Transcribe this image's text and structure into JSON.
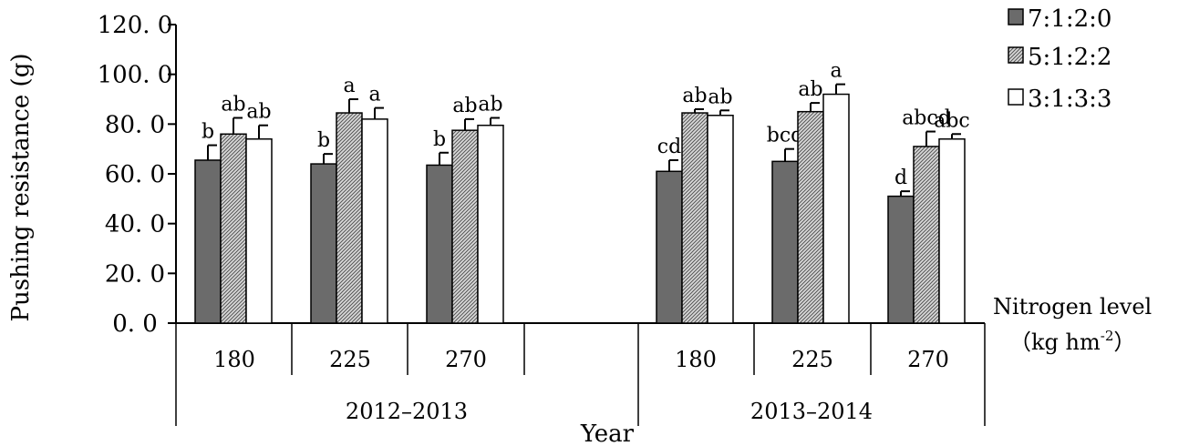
{
  "chart_data": {
    "type": "bar",
    "ylabel": "Pushing resistance (g)",
    "xlabel": "Year",
    "x2_label": "Nitrogen level",
    "x2_unit_prefix": "（kg hm",
    "x2_unit_exp": "-2",
    "x2_unit_suffix": "）",
    "ylim": [
      0,
      120
    ],
    "yticks": [
      "0. 0",
      "20. 0",
      "40. 0",
      "60. 0",
      "80. 0",
      "100. 0",
      "120. 0"
    ],
    "year_groups": [
      {
        "label": "2012–2013",
        "nitrogen": [
          "180",
          "225",
          "270"
        ]
      },
      {
        "label": "2013–2014",
        "nitrogen": [
          "180",
          "225",
          "270"
        ]
      }
    ],
    "categories": [
      "2012–2013 180",
      "2012–2013 225",
      "2012–2013 270",
      "2013–2014 180",
      "2013–2014 225",
      "2013–2014 270"
    ],
    "series": [
      {
        "name": "7:1:2:0",
        "color": "#6b6b6b",
        "pattern": "solid-gray",
        "values": [
          65.5,
          64.0,
          63.5,
          61.0,
          65.0,
          51.0
        ],
        "errors": [
          6.0,
          4.0,
          5.0,
          4.5,
          5.0,
          2.0
        ],
        "letters": [
          "b",
          "b",
          "b",
          "cd",
          "bcd",
          "d"
        ]
      },
      {
        "name": "5:1:2:2",
        "color": "#bbbbbb",
        "pattern": "hatched",
        "values": [
          76.0,
          84.5,
          77.5,
          84.5,
          85.0,
          71.0
        ],
        "errors": [
          6.5,
          5.5,
          4.5,
          1.5,
          3.5,
          6.0
        ],
        "letters": [
          "ab",
          "a",
          "ab",
          "ab",
          "ab",
          "abcd"
        ]
      },
      {
        "name": "3:1:3:3",
        "color": "#ffffff",
        "pattern": "white",
        "values": [
          74.0,
          82.0,
          79.5,
          83.5,
          92.0,
          74.0
        ],
        "errors": [
          5.5,
          4.5,
          3.0,
          2.0,
          4.0,
          2.0
        ],
        "letters": [
          "ab",
          "a",
          "ab",
          "ab",
          "a",
          "abc"
        ]
      }
    ],
    "legend": "top-right",
    "grid": false
  }
}
